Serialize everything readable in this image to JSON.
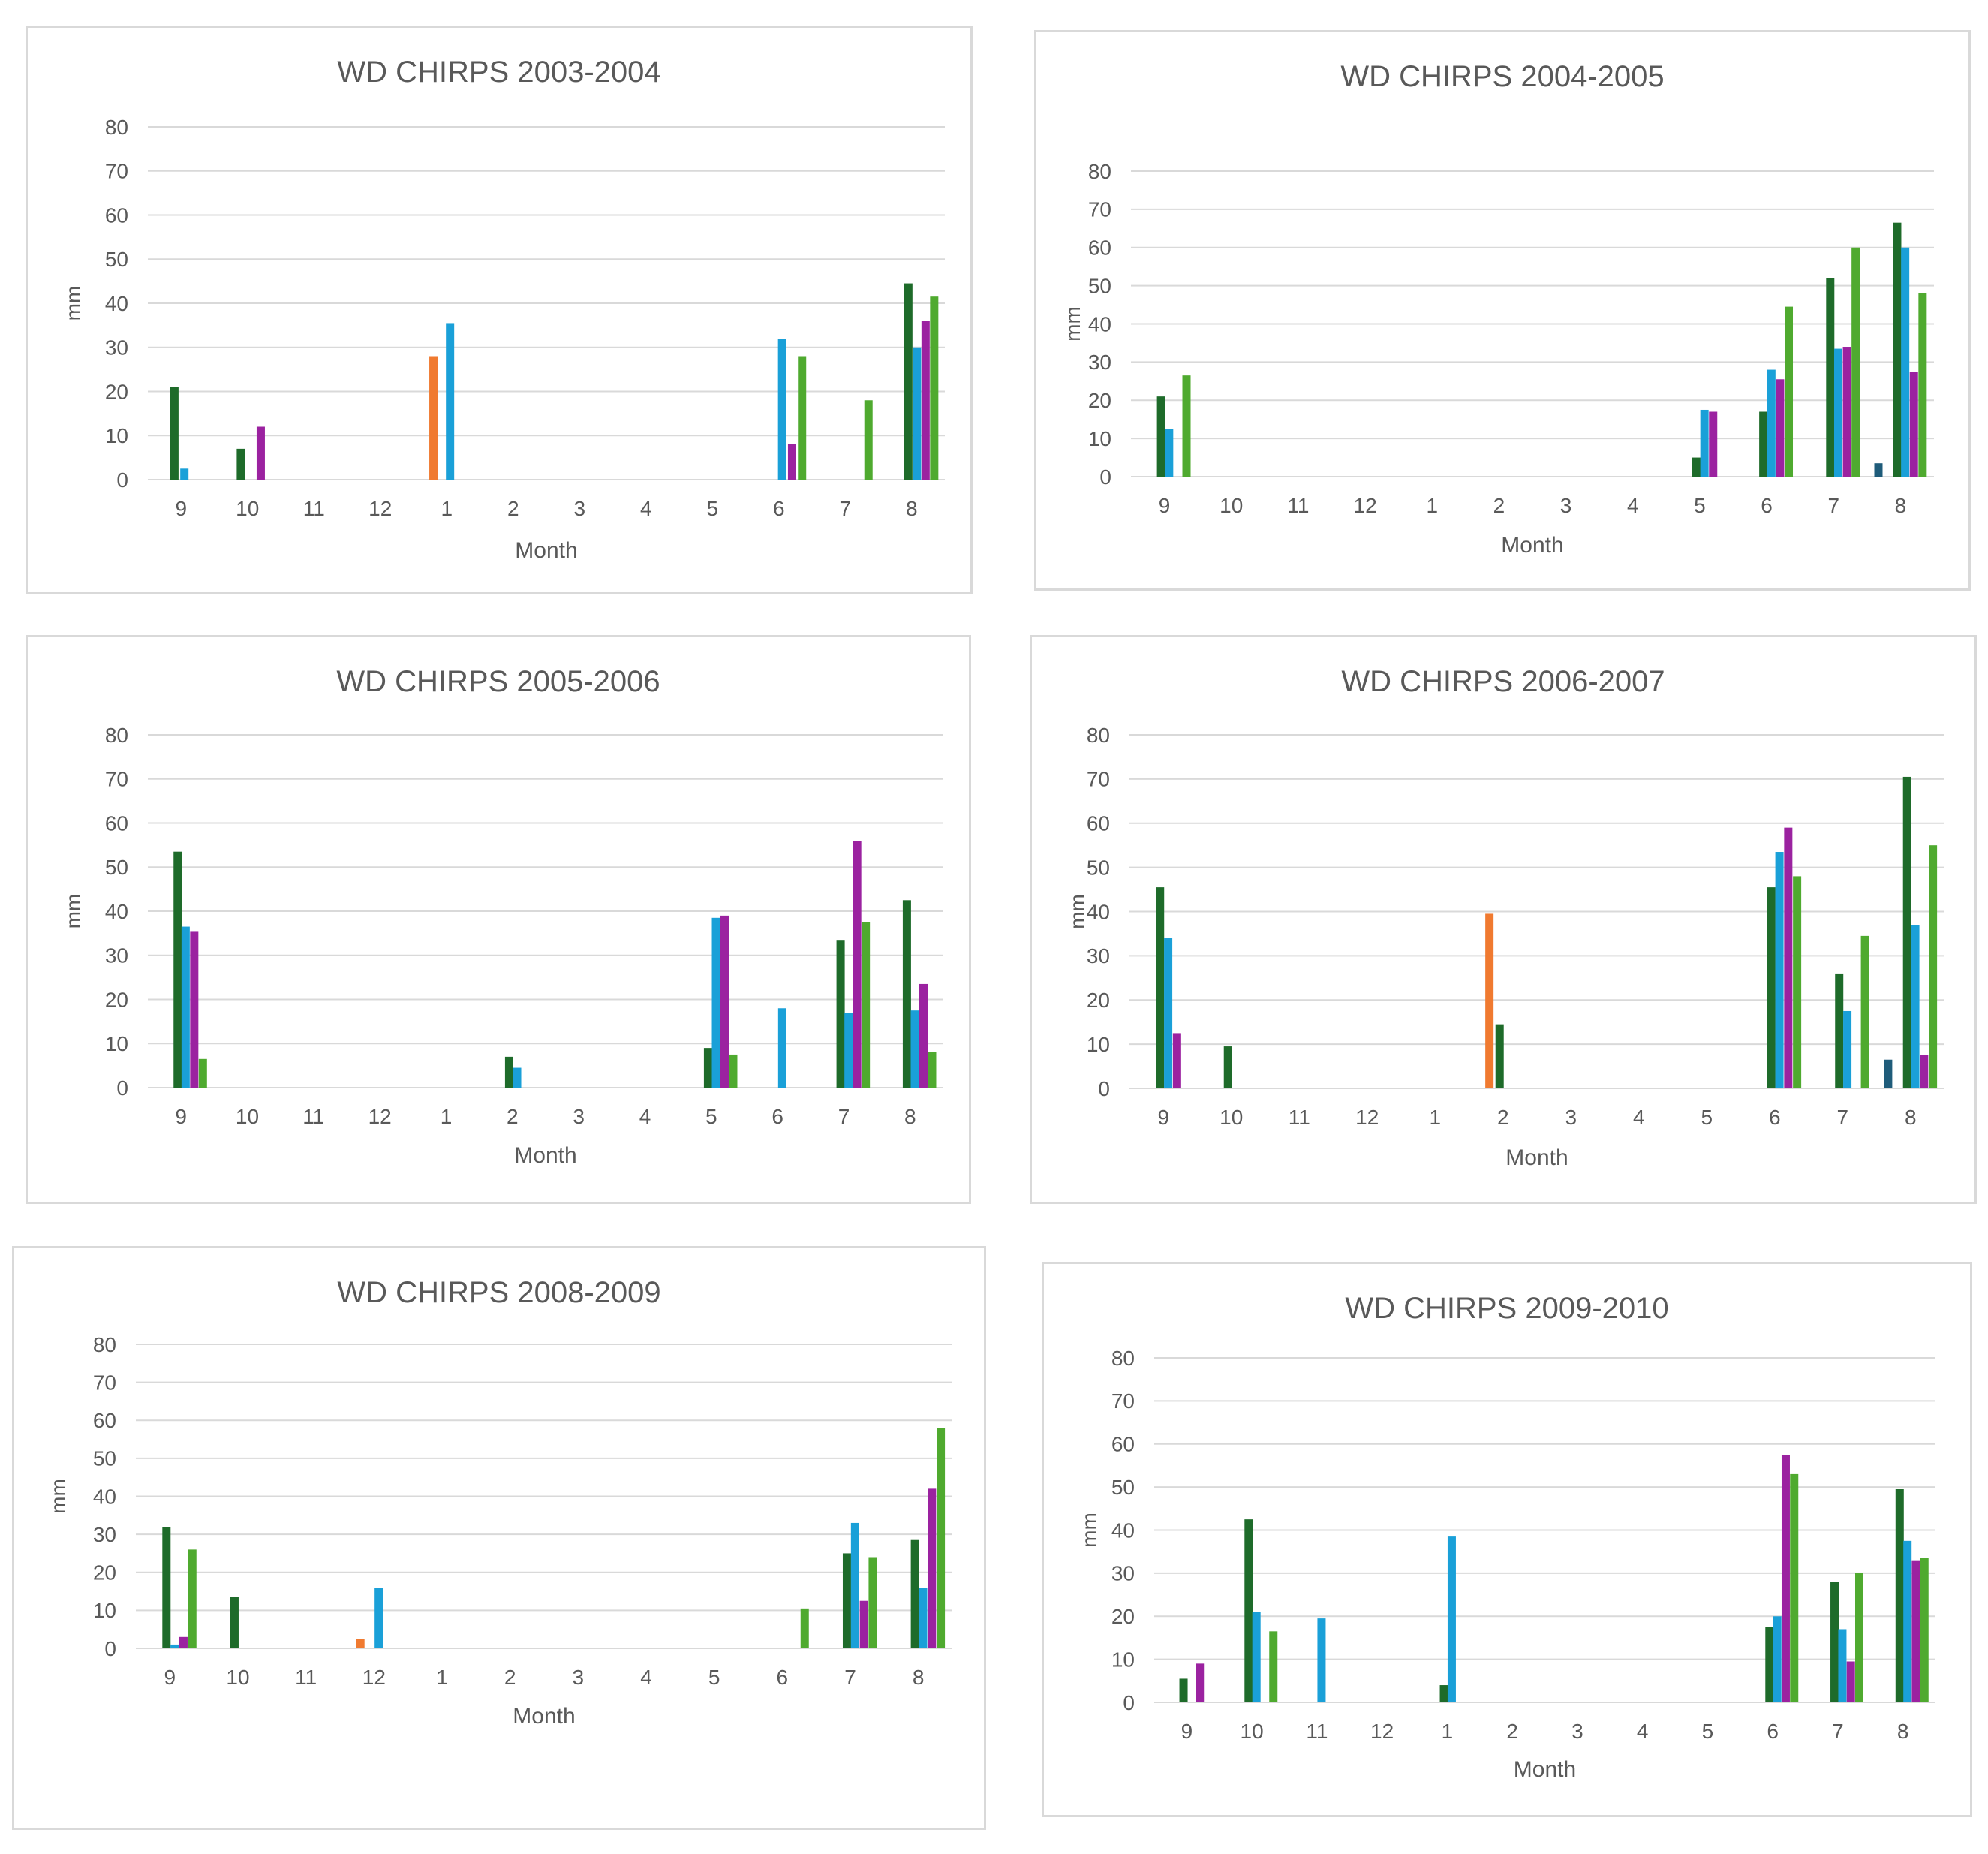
{
  "series_colors": [
    "#1e6b2a",
    "#1aa0d8",
    "#9b22a0",
    "#4faa2f",
    "#f07a30",
    "#1f5c7a"
  ],
  "chart_data": [
    {
      "type": "bar",
      "title": "WD CHIRPS  2003-2004",
      "xlabel": "Month",
      "ylabel": "mm",
      "ylim": [
        0,
        80
      ],
      "yticks": [
        "0",
        "10",
        "20",
        "30",
        "40",
        "50",
        "60",
        "70",
        "80"
      ],
      "categories": [
        "9",
        "10",
        "11",
        "12",
        "1",
        "2",
        "3",
        "4",
        "5",
        "6",
        "7",
        "8"
      ],
      "bars": [
        {
          "category": "9",
          "offset": -0.1,
          "color": 0,
          "value": 21
        },
        {
          "category": "9",
          "offset": 0.05,
          "color": 1,
          "value": 2.5
        },
        {
          "category": "10",
          "offset": -0.1,
          "color": 0,
          "value": 7
        },
        {
          "category": "10",
          "offset": 0.2,
          "color": 2,
          "value": 12
        },
        {
          "category": "1",
          "offset": -0.2,
          "color": 4,
          "value": 28
        },
        {
          "category": "1",
          "offset": 0.05,
          "color": 1,
          "value": 35.5
        },
        {
          "category": "6",
          "offset": 0.05,
          "color": 1,
          "value": 32
        },
        {
          "category": "6",
          "offset": 0.2,
          "color": 2,
          "value": 8
        },
        {
          "category": "6",
          "offset": 0.35,
          "color": 3,
          "value": 28
        },
        {
          "category": "7",
          "offset": 0.35,
          "color": 3,
          "value": 18
        },
        {
          "category": "8",
          "offset": -0.05,
          "color": 0,
          "value": 44.5
        },
        {
          "category": "8",
          "offset": 0.08,
          "color": 1,
          "value": 30
        },
        {
          "category": "8",
          "offset": 0.21,
          "color": 2,
          "value": 36
        },
        {
          "category": "8",
          "offset": 0.34,
          "color": 3,
          "value": 41.5
        }
      ]
    },
    {
      "type": "bar",
      "title": "WD  CHIRPS  2004-2005",
      "xlabel": "Month",
      "ylabel": "mm",
      "ylim": [
        0,
        80
      ],
      "yticks": [
        "0",
        "10",
        "20",
        "30",
        "40",
        "50",
        "60",
        "70",
        "80"
      ],
      "categories": [
        "9",
        "10",
        "11",
        "12",
        "1",
        "2",
        "3",
        "4",
        "5",
        "6",
        "7",
        "8"
      ],
      "bars": [
        {
          "category": "9",
          "offset": -0.05,
          "color": 0,
          "value": 21
        },
        {
          "category": "9",
          "offset": 0.07,
          "color": 1,
          "value": 12.5
        },
        {
          "category": "9",
          "offset": 0.33,
          "color": 3,
          "value": 26.5
        },
        {
          "category": "5",
          "offset": -0.05,
          "color": 0,
          "value": 5
        },
        {
          "category": "5",
          "offset": 0.07,
          "color": 1,
          "value": 17.5
        },
        {
          "category": "5",
          "offset": 0.2,
          "color": 2,
          "value": 17
        },
        {
          "category": "6",
          "offset": -0.05,
          "color": 0,
          "value": 17
        },
        {
          "category": "6",
          "offset": 0.07,
          "color": 1,
          "value": 28
        },
        {
          "category": "6",
          "offset": 0.2,
          "color": 2,
          "value": 25.5
        },
        {
          "category": "6",
          "offset": 0.33,
          "color": 3,
          "value": 44.5
        },
        {
          "category": "7",
          "offset": -0.05,
          "color": 0,
          "value": 52
        },
        {
          "category": "7",
          "offset": 0.07,
          "color": 1,
          "value": 33.5
        },
        {
          "category": "7",
          "offset": 0.2,
          "color": 2,
          "value": 34
        },
        {
          "category": "7",
          "offset": 0.33,
          "color": 3,
          "value": 60
        },
        {
          "category": "8",
          "offset": -0.33,
          "color": 5,
          "value": 3.5
        },
        {
          "category": "8",
          "offset": -0.05,
          "color": 0,
          "value": 66.5
        },
        {
          "category": "8",
          "offset": 0.07,
          "color": 1,
          "value": 60
        },
        {
          "category": "8",
          "offset": 0.2,
          "color": 2,
          "value": 27.5
        },
        {
          "category": "8",
          "offset": 0.33,
          "color": 3,
          "value": 48
        }
      ]
    },
    {
      "type": "bar",
      "title": "WD  CHIRPS  2005-2006",
      "xlabel": "Month",
      "ylabel": "mm",
      "ylim": [
        0,
        80
      ],
      "yticks": [
        "0",
        "10",
        "20",
        "30",
        "40",
        "50",
        "60",
        "70",
        "80"
      ],
      "categories": [
        "9",
        "10",
        "11",
        "12",
        "1",
        "2",
        "3",
        "4",
        "5",
        "6",
        "7",
        "8"
      ],
      "bars": [
        {
          "category": "9",
          "offset": -0.05,
          "color": 0,
          "value": 53.5
        },
        {
          "category": "9",
          "offset": 0.07,
          "color": 1,
          "value": 36.5
        },
        {
          "category": "9",
          "offset": 0.2,
          "color": 2,
          "value": 35.5
        },
        {
          "category": "9",
          "offset": 0.33,
          "color": 3,
          "value": 6.5
        },
        {
          "category": "2",
          "offset": -0.05,
          "color": 0,
          "value": 7
        },
        {
          "category": "2",
          "offset": 0.07,
          "color": 1,
          "value": 4.5
        },
        {
          "category": "5",
          "offset": -0.05,
          "color": 0,
          "value": 9
        },
        {
          "category": "5",
          "offset": 0.07,
          "color": 1,
          "value": 38.5
        },
        {
          "category": "5",
          "offset": 0.2,
          "color": 2,
          "value": 39
        },
        {
          "category": "5",
          "offset": 0.33,
          "color": 3,
          "value": 7.5
        },
        {
          "category": "6",
          "offset": 0.07,
          "color": 1,
          "value": 18
        },
        {
          "category": "7",
          "offset": -0.05,
          "color": 0,
          "value": 33.5
        },
        {
          "category": "7",
          "offset": 0.07,
          "color": 1,
          "value": 17
        },
        {
          "category": "7",
          "offset": 0.2,
          "color": 2,
          "value": 56
        },
        {
          "category": "7",
          "offset": 0.33,
          "color": 3,
          "value": 37.5
        },
        {
          "category": "8",
          "offset": -0.05,
          "color": 0,
          "value": 42.5
        },
        {
          "category": "8",
          "offset": 0.07,
          "color": 1,
          "value": 17.5
        },
        {
          "category": "8",
          "offset": 0.2,
          "color": 2,
          "value": 23.5
        },
        {
          "category": "8",
          "offset": 0.33,
          "color": 3,
          "value": 8
        }
      ]
    },
    {
      "type": "bar",
      "title": "WD  CHIRPS  2006-2007",
      "xlabel": "Month",
      "ylabel": "mm",
      "ylim": [
        0,
        80
      ],
      "yticks": [
        "0",
        "10",
        "20",
        "30",
        "40",
        "50",
        "60",
        "70",
        "80"
      ],
      "categories": [
        "9",
        "10",
        "11",
        "12",
        "1",
        "2",
        "3",
        "4",
        "5",
        "6",
        "7",
        "8"
      ],
      "bars": [
        {
          "category": "9",
          "offset": -0.05,
          "color": 0,
          "value": 45.5
        },
        {
          "category": "9",
          "offset": 0.07,
          "color": 1,
          "value": 34
        },
        {
          "category": "9",
          "offset": 0.2,
          "color": 2,
          "value": 12.5
        },
        {
          "category": "10",
          "offset": -0.05,
          "color": 0,
          "value": 9.5
        },
        {
          "category": "2",
          "offset": -0.2,
          "color": 4,
          "value": 39.5
        },
        {
          "category": "2",
          "offset": -0.05,
          "color": 0,
          "value": 14.5
        },
        {
          "category": "6",
          "offset": -0.05,
          "color": 0,
          "value": 45.5
        },
        {
          "category": "6",
          "offset": 0.07,
          "color": 1,
          "value": 53.5
        },
        {
          "category": "6",
          "offset": 0.2,
          "color": 2,
          "value": 59
        },
        {
          "category": "6",
          "offset": 0.33,
          "color": 3,
          "value": 48
        },
        {
          "category": "7",
          "offset": -0.05,
          "color": 0,
          "value": 26
        },
        {
          "category": "7",
          "offset": 0.07,
          "color": 1,
          "value": 17.5
        },
        {
          "category": "7",
          "offset": 0.33,
          "color": 3,
          "value": 34.5
        },
        {
          "category": "8",
          "offset": -0.33,
          "color": 5,
          "value": 6.5
        },
        {
          "category": "8",
          "offset": -0.05,
          "color": 0,
          "value": 70.5
        },
        {
          "category": "8",
          "offset": 0.07,
          "color": 1,
          "value": 37
        },
        {
          "category": "8",
          "offset": 0.2,
          "color": 2,
          "value": 7.5
        },
        {
          "category": "8",
          "offset": 0.33,
          "color": 3,
          "value": 55
        }
      ]
    },
    {
      "type": "bar",
      "title": "WD  CHIRPS  2008-2009",
      "xlabel": "Month",
      "ylabel": "mm",
      "ylim": [
        0,
        80
      ],
      "yticks": [
        "0",
        "10",
        "20",
        "30",
        "40",
        "50",
        "60",
        "70",
        "80"
      ],
      "categories": [
        "9",
        "10",
        "11",
        "12",
        "1",
        "2",
        "3",
        "4",
        "5",
        "6",
        "7",
        "8"
      ],
      "bars": [
        {
          "category": "9",
          "offset": -0.05,
          "color": 0,
          "value": 32
        },
        {
          "category": "9",
          "offset": 0.07,
          "color": 1,
          "value": 1
        },
        {
          "category": "9",
          "offset": 0.2,
          "color": 2,
          "value": 3
        },
        {
          "category": "9",
          "offset": 0.33,
          "color": 3,
          "value": 26
        },
        {
          "category": "10",
          "offset": -0.05,
          "color": 0,
          "value": 13.5
        },
        {
          "category": "12",
          "offset": -0.2,
          "color": 4,
          "value": 2.5
        },
        {
          "category": "12",
          "offset": 0.07,
          "color": 1,
          "value": 16
        },
        {
          "category": "6",
          "offset": 0.33,
          "color": 3,
          "value": 10.5
        },
        {
          "category": "7",
          "offset": -0.05,
          "color": 0,
          "value": 25
        },
        {
          "category": "7",
          "offset": 0.07,
          "color": 1,
          "value": 33
        },
        {
          "category": "7",
          "offset": 0.2,
          "color": 2,
          "value": 12.5
        },
        {
          "category": "7",
          "offset": 0.33,
          "color": 3,
          "value": 24
        },
        {
          "category": "8",
          "offset": -0.05,
          "color": 0,
          "value": 28.5
        },
        {
          "category": "8",
          "offset": 0.07,
          "color": 1,
          "value": 16
        },
        {
          "category": "8",
          "offset": 0.2,
          "color": 2,
          "value": 42
        },
        {
          "category": "8",
          "offset": 0.33,
          "color": 3,
          "value": 58
        }
      ]
    },
    {
      "type": "bar",
      "title": "WD  CHIRPS  2009-2010",
      "xlabel": "Month",
      "ylabel": "mm",
      "ylim": [
        0,
        80
      ],
      "yticks": [
        "0",
        "10",
        "20",
        "30",
        "40",
        "50",
        "60",
        "70",
        "80"
      ],
      "categories": [
        "9",
        "10",
        "11",
        "12",
        "1",
        "2",
        "3",
        "4",
        "5",
        "6",
        "7",
        "8"
      ],
      "bars": [
        {
          "category": "9",
          "offset": -0.05,
          "color": 0,
          "value": 5.5
        },
        {
          "category": "9",
          "offset": 0.2,
          "color": 2,
          "value": 9
        },
        {
          "category": "10",
          "offset": -0.05,
          "color": 0,
          "value": 42.5
        },
        {
          "category": "10",
          "offset": 0.07,
          "color": 1,
          "value": 21
        },
        {
          "category": "10",
          "offset": 0.33,
          "color": 3,
          "value": 16.5
        },
        {
          "category": "11",
          "offset": 0.07,
          "color": 1,
          "value": 19.5
        },
        {
          "category": "1",
          "offset": -0.05,
          "color": 0,
          "value": 4
        },
        {
          "category": "1",
          "offset": 0.07,
          "color": 1,
          "value": 38.5
        },
        {
          "category": "6",
          "offset": -0.05,
          "color": 0,
          "value": 17.5
        },
        {
          "category": "6",
          "offset": 0.07,
          "color": 1,
          "value": 20
        },
        {
          "category": "6",
          "offset": 0.2,
          "color": 2,
          "value": 57.5
        },
        {
          "category": "6",
          "offset": 0.33,
          "color": 3,
          "value": 53
        },
        {
          "category": "7",
          "offset": -0.05,
          "color": 0,
          "value": 28
        },
        {
          "category": "7",
          "offset": 0.07,
          "color": 1,
          "value": 17
        },
        {
          "category": "7",
          "offset": 0.2,
          "color": 2,
          "value": 9.5
        },
        {
          "category": "7",
          "offset": 0.33,
          "color": 3,
          "value": 30
        },
        {
          "category": "8",
          "offset": -0.05,
          "color": 0,
          "value": 49.5
        },
        {
          "category": "8",
          "offset": 0.07,
          "color": 1,
          "value": 37.5
        },
        {
          "category": "8",
          "offset": 0.2,
          "color": 2,
          "value": 33
        },
        {
          "category": "8",
          "offset": 0.33,
          "color": 3,
          "value": 33.5
        }
      ]
    }
  ]
}
